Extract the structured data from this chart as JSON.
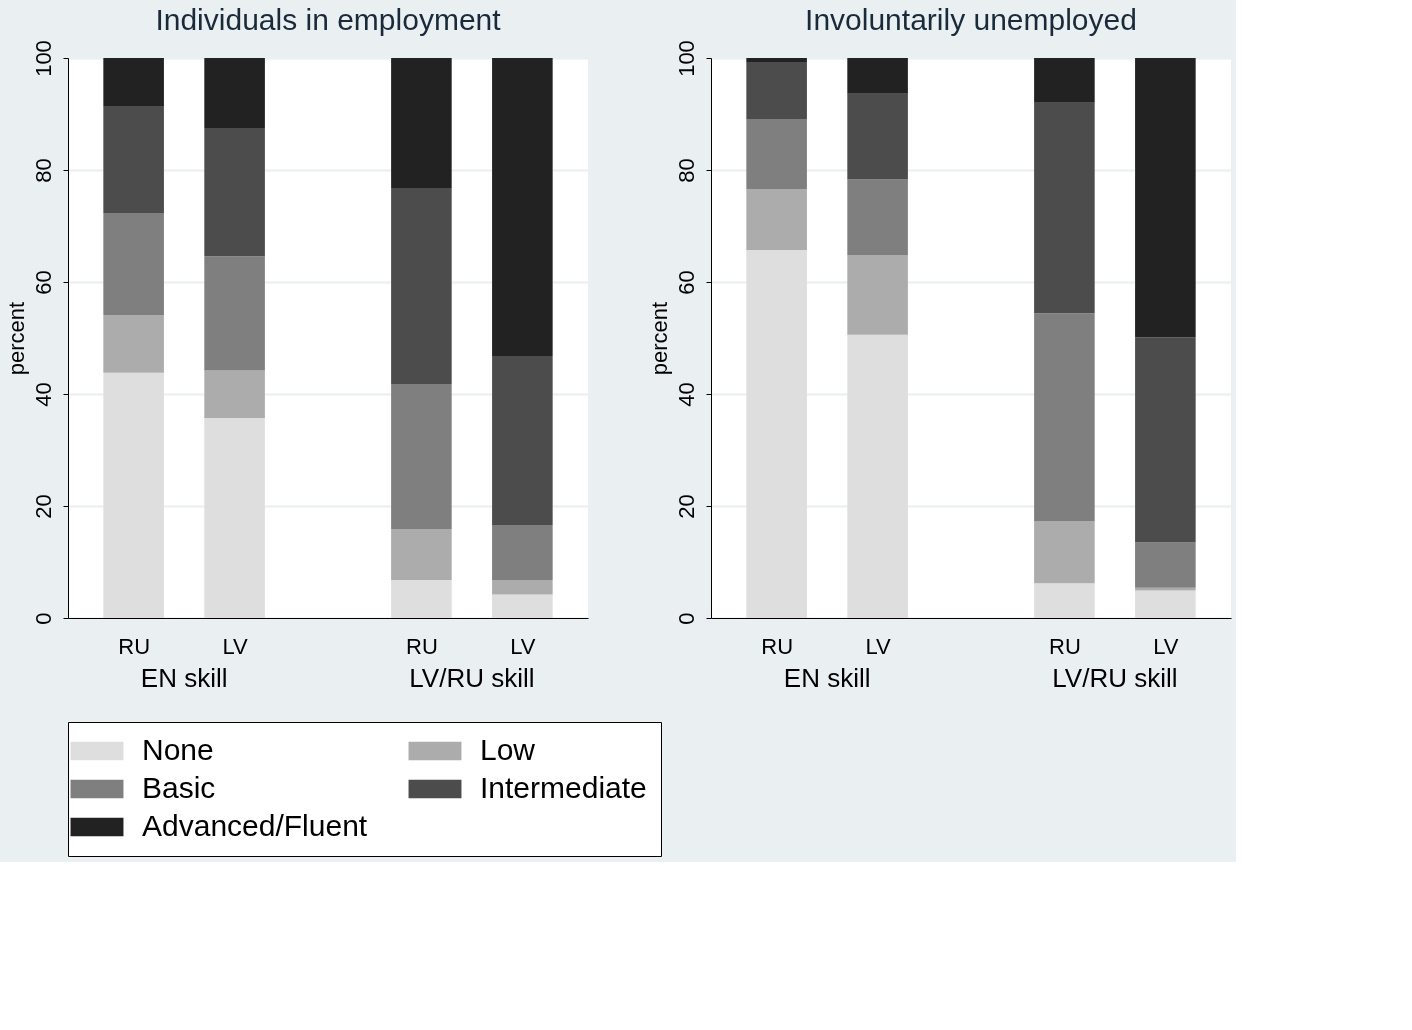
{
  "chart_data": [
    {
      "type": "bar",
      "title": "Individuals in employment",
      "ylabel": "percent",
      "categories": [
        "RU",
        "LV",
        "RU",
        "LV"
      ],
      "annotations": [
        "EN skill",
        "LV/RU skill"
      ],
      "stacked": true,
      "ylim": [
        0,
        100
      ],
      "yticks": [
        0,
        20,
        40,
        60,
        80,
        100
      ],
      "grid": "y",
      "legend": "bottom",
      "series": [
        {
          "name": "None",
          "color": "#dedede",
          "values": [
            43.8,
            35.7,
            6.8,
            4.2
          ]
        },
        {
          "name": "Low",
          "color": "#acacac",
          "values": [
            10.3,
            8.5,
            9.1,
            2.6
          ]
        },
        {
          "name": "Basic",
          "color": "#7f7f7f",
          "values": [
            18.2,
            20.4,
            25.9,
            9.8
          ]
        },
        {
          "name": "Intermediate",
          "color": "#4c4c4c",
          "values": [
            19.0,
            22.9,
            35.0,
            30.2
          ]
        },
        {
          "name": "Advanced/Fluent",
          "color": "#222222",
          "values": [
            8.7,
            12.5,
            23.2,
            53.2
          ]
        }
      ]
    },
    {
      "type": "bar",
      "title": "Involuntarily unemployed",
      "ylabel": "percent",
      "categories": [
        "RU",
        "LV",
        "RU",
        "LV"
      ],
      "annotations": [
        "EN skill",
        "LV/RU skill"
      ],
      "stacked": true,
      "ylim": [
        0,
        100
      ],
      "yticks": [
        0,
        20,
        40,
        60,
        80,
        100
      ],
      "grid": "y",
      "series": [
        {
          "name": "None",
          "color": "#dedede",
          "values": [
            65.7,
            50.6,
            6.2,
            4.9
          ]
        },
        {
          "name": "Low",
          "color": "#acacac",
          "values": [
            10.9,
            14.2,
            11.1,
            0.5
          ]
        },
        {
          "name": "Basic",
          "color": "#7f7f7f",
          "values": [
            12.5,
            13.5,
            37.1,
            8.1
          ]
        },
        {
          "name": "Intermediate",
          "color": "#4c4c4c",
          "values": [
            10.2,
            15.3,
            37.6,
            36.6
          ]
        },
        {
          "name": "Advanced/Fluent",
          "color": "#222222",
          "values": [
            0.7,
            6.4,
            8.0,
            49.9
          ]
        }
      ]
    }
  ]
}
